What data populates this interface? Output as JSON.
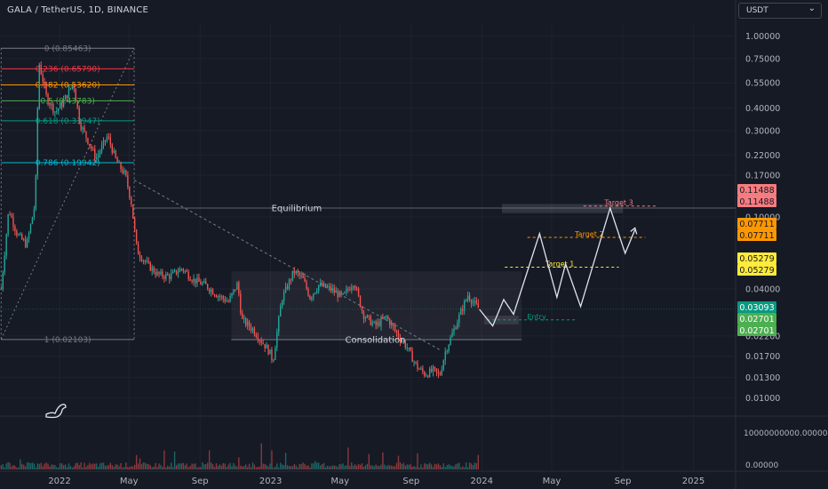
{
  "header": {
    "symbol_title": "GALA / TetherUS, 1D, BINANCE",
    "currency_button": "USDT",
    "currency_chevron_icon": "chevron-down-icon"
  },
  "colors": {
    "background": "#161a25",
    "up": "#26a69a",
    "down": "#ef5350",
    "grid": "#1f2330",
    "projection": "#e0e3eb",
    "target3": "#f77c80",
    "target2": "#ff9800",
    "target1": "#ffeb3b",
    "entry": "#089981"
  },
  "chart_data": {
    "type": "candlestick",
    "y_scale": "log",
    "ylim": [
      0.0085,
      1.15
    ],
    "xlim": [
      "2021-09-20",
      "2025-03-15"
    ],
    "x_tick_labels": [
      {
        "label": "2022",
        "date": "2022-01-01"
      },
      {
        "label": "May",
        "date": "2022-05-01"
      },
      {
        "label": "Sep",
        "date": "2022-09-01"
      },
      {
        "label": "2023",
        "date": "2023-01-01"
      },
      {
        "label": "May",
        "date": "2023-05-01"
      },
      {
        "label": "Sep",
        "date": "2023-09-01"
      },
      {
        "label": "2024",
        "date": "2024-01-01"
      },
      {
        "label": "May",
        "date": "2024-05-01"
      },
      {
        "label": "Sep",
        "date": "2024-09-01"
      },
      {
        "label": "2025",
        "date": "2025-01-01"
      }
    ],
    "y_tick_labels": [
      {
        "label": "1.00000",
        "value": 1.0
      },
      {
        "label": "0.75000",
        "value": 0.75
      },
      {
        "label": "0.55000",
        "value": 0.55
      },
      {
        "label": "0.40000",
        "value": 0.4
      },
      {
        "label": "0.30000",
        "value": 0.3
      },
      {
        "label": "0.22000",
        "value": 0.22
      },
      {
        "label": "0.17000",
        "value": 0.17
      },
      {
        "label": "0.10000",
        "value": 0.1
      },
      {
        "label": "0.04000",
        "value": 0.04
      },
      {
        "label": "0.02200",
        "value": 0.022
      },
      {
        "label": "0.01700",
        "value": 0.017
      },
      {
        "label": "0.01300",
        "value": 0.013
      },
      {
        "label": "0.01000",
        "value": 0.01
      }
    ],
    "price_path": [
      [
        "2021-09-22",
        0.04
      ],
      [
        "2021-10-05",
        0.11
      ],
      [
        "2021-10-20",
        0.08
      ],
      [
        "2021-11-05",
        0.07
      ],
      [
        "2021-11-20",
        0.12
      ],
      [
        "2021-11-26",
        0.72
      ],
      [
        "2021-12-10",
        0.45
      ],
      [
        "2021-12-25",
        0.38
      ],
      [
        "2022-01-05",
        0.42
      ],
      [
        "2022-01-25",
        0.55
      ],
      [
        "2022-02-05",
        0.33
      ],
      [
        "2022-02-20",
        0.26
      ],
      [
        "2022-03-05",
        0.21
      ],
      [
        "2022-03-25",
        0.28
      ],
      [
        "2022-04-10",
        0.2
      ],
      [
        "2022-04-25",
        0.17
      ],
      [
        "2022-05-05",
        0.12
      ],
      [
        "2022-05-15",
        0.065
      ],
      [
        "2022-06-01",
        0.055
      ],
      [
        "2022-06-20",
        0.048
      ],
      [
        "2022-07-10",
        0.047
      ],
      [
        "2022-08-01",
        0.052
      ],
      [
        "2022-08-20",
        0.045
      ],
      [
        "2022-09-10",
        0.042
      ],
      [
        "2022-10-01",
        0.037
      ],
      [
        "2022-10-20",
        0.034
      ],
      [
        "2022-11-05",
        0.043
      ],
      [
        "2022-11-12",
        0.027
      ],
      [
        "2022-12-01",
        0.024
      ],
      [
        "2022-12-30",
        0.018
      ],
      [
        "2023-01-05",
        0.016
      ],
      [
        "2023-01-20",
        0.035
      ],
      [
        "2023-02-10",
        0.05
      ],
      [
        "2023-02-25",
        0.046
      ],
      [
        "2023-03-10",
        0.036
      ],
      [
        "2023-03-25",
        0.042
      ],
      [
        "2023-04-15",
        0.04
      ],
      [
        "2023-05-05",
        0.036
      ],
      [
        "2023-05-25",
        0.044
      ],
      [
        "2023-06-10",
        0.029
      ],
      [
        "2023-07-01",
        0.025
      ],
      [
        "2023-07-20",
        0.028
      ],
      [
        "2023-08-10",
        0.022
      ],
      [
        "2023-08-25",
        0.019
      ],
      [
        "2023-09-10",
        0.015
      ],
      [
        "2023-09-25",
        0.0135
      ],
      [
        "2023-10-10",
        0.0142
      ],
      [
        "2023-10-20",
        0.0132
      ],
      [
        "2023-10-30",
        0.018
      ],
      [
        "2023-11-12",
        0.023
      ],
      [
        "2023-11-28",
        0.031
      ],
      [
        "2023-12-08",
        0.037
      ],
      [
        "2023-12-20",
        0.033
      ],
      [
        "2023-12-28",
        0.0309
      ]
    ],
    "projection_path": [
      [
        "2023-12-28",
        0.0309
      ],
      [
        "2024-01-20",
        0.025
      ],
      [
        "2024-02-08",
        0.035
      ],
      [
        "2024-02-25",
        0.029
      ],
      [
        "2024-04-10",
        0.081
      ],
      [
        "2024-05-10",
        0.036
      ],
      [
        "2024-05-25",
        0.055
      ],
      [
        "2024-06-20",
        0.032
      ],
      [
        "2024-08-10",
        0.112
      ],
      [
        "2024-09-05",
        0.063
      ],
      [
        "2024-09-22",
        0.085
      ]
    ],
    "fibonacci": {
      "levels": [
        {
          "label": "0 (0.85463)",
          "value": 0.85463,
          "color": "#787b86"
        },
        {
          "label": "0.236 (0.65790)",
          "value": 0.6579,
          "color": "#f23645"
        },
        {
          "label": "0.382 (0.53620)",
          "value": 0.5362,
          "color": "#ff9800"
        },
        {
          "label": "0.5 (0.43783)",
          "value": 0.43783,
          "color": "#4caf50"
        },
        {
          "label": "0.618 (0.33947)",
          "value": 0.33947,
          "color": "#089981"
        },
        {
          "label": "0.786 (0.19942)",
          "value": 0.19942,
          "color": "#00bcd4"
        },
        {
          "label": "1 (0.02103)",
          "value": 0.02103,
          "color": "#787b86"
        }
      ],
      "x_start": "2021-09-22",
      "x_end": "2022-05-10"
    },
    "annotations": [
      {
        "text": "Equilibrium",
        "value": 0.112
      },
      {
        "text": "Consolidation",
        "value": 0.021
      },
      {
        "text": "Target 1",
        "value": 0.05279
      },
      {
        "text": "Target 2",
        "value": 0.07711
      },
      {
        "text": "Target 3",
        "value": 0.11488
      },
      {
        "text": "Entry",
        "value": 0.02701
      }
    ],
    "price_tags": [
      {
        "label": "0.11488",
        "value": 0.11488,
        "bg": "#f77c80",
        "fg": "#131722"
      },
      {
        "label": "0.11488",
        "value": 0.11488,
        "bg": "#f77c80",
        "fg": "#131722"
      },
      {
        "label": "0.07711",
        "value": 0.07711,
        "bg": "#ff9800",
        "fg": "#131722"
      },
      {
        "label": "0.07711",
        "value": 0.07711,
        "bg": "#ff9800",
        "fg": "#131722"
      },
      {
        "label": "0.05279",
        "value": 0.05279,
        "bg": "#ffeb3b",
        "fg": "#131722"
      },
      {
        "label": "0.05279",
        "value": 0.05279,
        "bg": "#ffeb3b",
        "fg": "#131722"
      },
      {
        "label": "0.03093",
        "value": 0.03093,
        "bg": "#089981",
        "fg": "#ffffff"
      },
      {
        "label": "0.02701",
        "value": 0.02701,
        "bg": "#4caf50",
        "fg": "#ffffff"
      },
      {
        "label": "0.02701",
        "value": 0.02701,
        "bg": "#4caf50",
        "fg": "#ffffff"
      }
    ],
    "last_price": 0.03093,
    "volume_axis_labels": [
      "10000000000.00000",
      "0.00000"
    ]
  }
}
